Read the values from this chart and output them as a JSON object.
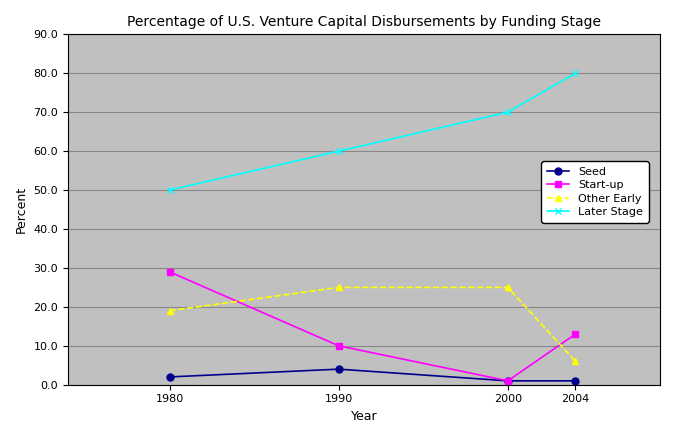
{
  "title": "Percentage of U.S. Venture Capital Disbursements by Funding Stage",
  "xlabel": "Year",
  "ylabel": "Percent",
  "years": [
    1980,
    1990,
    2000,
    2004
  ],
  "series": [
    {
      "label": "Seed",
      "values": [
        2,
        4,
        1,
        1
      ],
      "color": "#00008B",
      "marker": "o",
      "linestyle": "-"
    },
    {
      "label": "Start-up",
      "values": [
        29,
        10,
        1,
        13
      ],
      "color": "#FF00FF",
      "marker": "s",
      "linestyle": "-"
    },
    {
      "label": "Other Early",
      "values": [
        19,
        25,
        25,
        6
      ],
      "color": "#FFFF00",
      "marker": "^",
      "linestyle": "--"
    },
    {
      "label": "Later Stage",
      "values": [
        50,
        60,
        70,
        80
      ],
      "color": "#00FFFF",
      "marker": "x",
      "linestyle": "-"
    }
  ],
  "ylim": [
    0,
    90
  ],
  "yticks": [
    0.0,
    10.0,
    20.0,
    30.0,
    40.0,
    50.0,
    60.0,
    70.0,
    80.0,
    90.0
  ],
  "plot_bg_color": "#C0C0C0",
  "fig_bg_color": "#FFFFFF",
  "title_fontsize": 10,
  "axis_label_fontsize": 9,
  "tick_fontsize": 8,
  "grid_color": "#A0A0A0",
  "xlim_left": 1974,
  "xlim_right": 2009
}
